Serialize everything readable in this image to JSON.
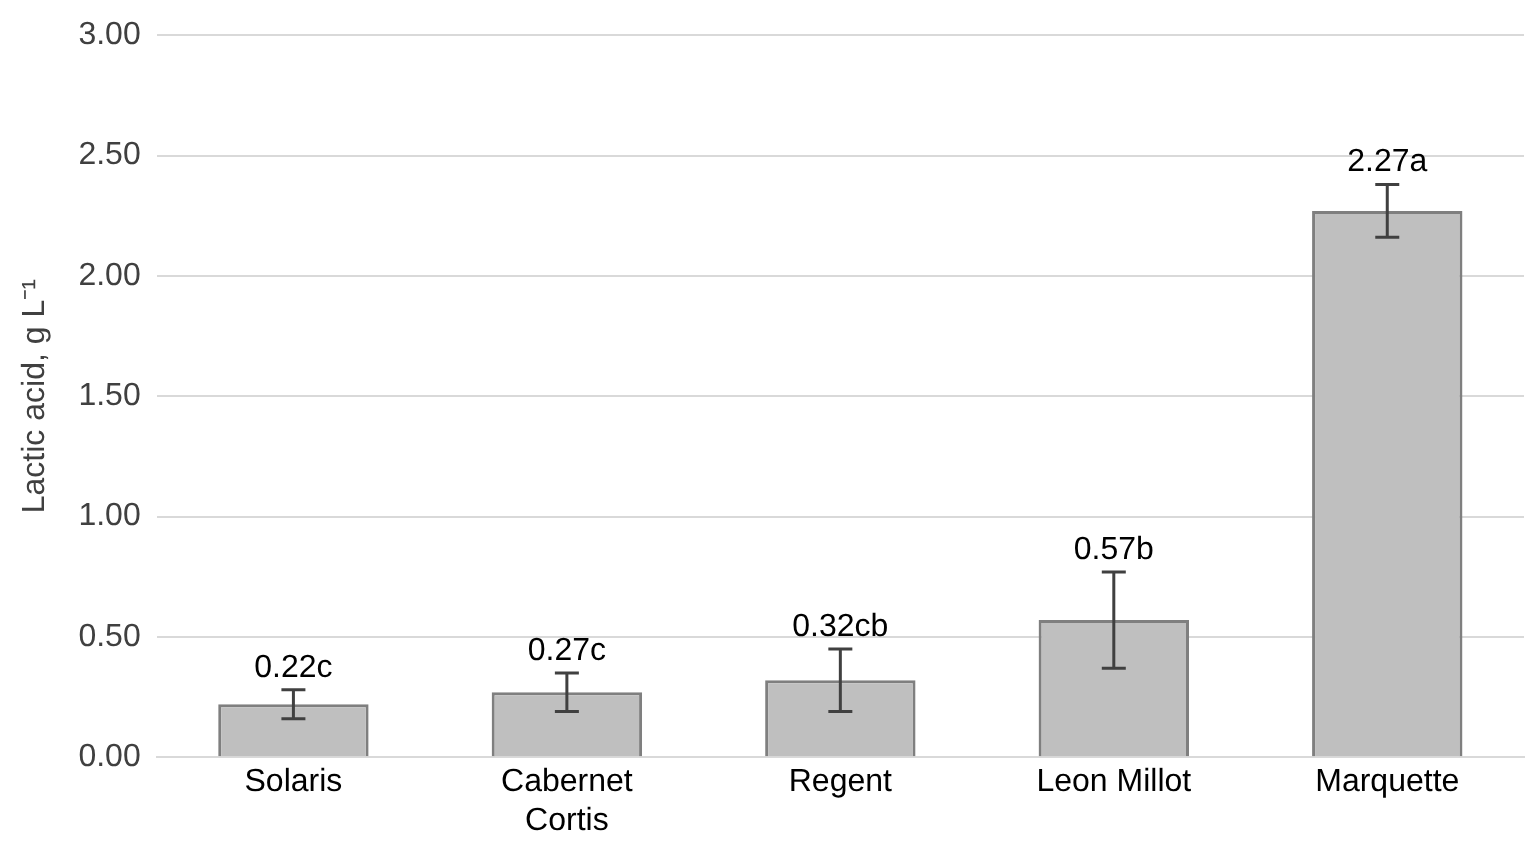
{
  "chart_data": {
    "type": "bar",
    "ylabel": "Lactic acid, g L⁻¹",
    "categories": [
      "Solaris",
      "Cabernet Cortis",
      "Regent",
      "Leon Millot",
      "Marquette"
    ],
    "values": [
      0.22,
      0.27,
      0.32,
      0.57,
      2.27
    ],
    "errors": [
      0.06,
      0.08,
      0.13,
      0.2,
      0.11
    ],
    "value_labels": [
      "0.22c",
      "0.27c",
      "0.32cb",
      "0.57b",
      "2.27a"
    ],
    "color": "#bfbfbf",
    "ylim": [
      0,
      3
    ],
    "yticks": [
      {
        "value": 0,
        "label": "0.00"
      },
      {
        "value": 0.5,
        "label": "0.50"
      },
      {
        "value": 1,
        "label": "1.00"
      },
      {
        "value": 1.5,
        "label": "1.50"
      },
      {
        "value": 2,
        "label": "2.00"
      },
      {
        "value": 2.5,
        "label": "2.50"
      },
      {
        "value": 3,
        "label": "3.00"
      }
    ],
    "grid": "y",
    "legend": false
  }
}
